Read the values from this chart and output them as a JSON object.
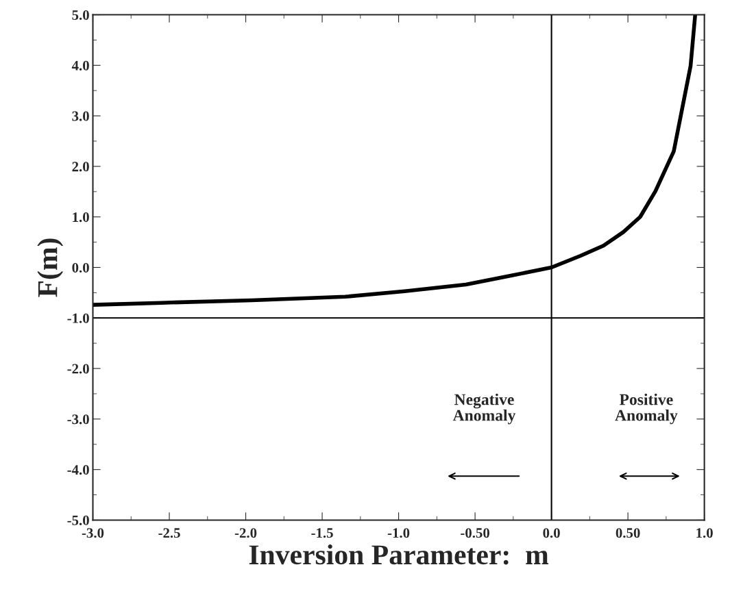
{
  "chart_data": {
    "type": "line",
    "xlabel": "Inversion Parameter:  m",
    "ylabel": "F(m)",
    "x": [
      -3.0,
      -2.55,
      -1.96,
      -1.35,
      -0.96,
      -0.56,
      -0.26,
      0.0,
      0.19,
      0.34,
      0.47,
      0.58,
      0.68,
      0.8,
      0.91,
      0.94
    ],
    "series": [
      {
        "color": "#000000",
        "values": [
          -0.74,
          -0.7,
          -0.65,
          -0.58,
          -0.47,
          -0.34,
          -0.16,
          0.0,
          0.23,
          0.43,
          0.7,
          1.0,
          1.51,
          2.3,
          3.99,
          5.0
        ]
      }
    ],
    "xlim": [
      -3.0,
      1.0
    ],
    "xticks": [
      {
        "value": -3.0,
        "label": "-3.0"
      },
      {
        "value": -2.5,
        "label": "-2.5"
      },
      {
        "value": -2.0,
        "label": "-2.0"
      },
      {
        "value": -1.5,
        "label": "-1.5"
      },
      {
        "value": -1.0,
        "label": "-1.0"
      },
      {
        "value": -0.5,
        "label": "-0.50"
      },
      {
        "value": 0.0,
        "label": "0.0"
      },
      {
        "value": 0.5,
        "label": "0.50"
      },
      {
        "value": 1.0,
        "label": "1.0"
      }
    ],
    "ylim": [
      -5.0,
      5.0
    ],
    "yticks": [
      {
        "value": -5.0,
        "label": "-5.0"
      },
      {
        "value": -4.0,
        "label": "-4.0"
      },
      {
        "value": -3.0,
        "label": "-3.0"
      },
      {
        "value": -2.0,
        "label": "-2.0"
      },
      {
        "value": -1.0,
        "label": "-1.0"
      },
      {
        "value": 0.0,
        "label": "0.0"
      },
      {
        "value": 1.0,
        "label": "1.0"
      },
      {
        "value": 2.0,
        "label": "2.0"
      },
      {
        "value": 3.0,
        "label": "3.0"
      },
      {
        "value": 4.0,
        "label": "4.0"
      },
      {
        "value": 5.0,
        "label": "5.0"
      }
    ],
    "ref_lines": [
      {
        "axis": "y",
        "value": -1.0,
        "color": "#000000"
      },
      {
        "axis": "x",
        "value": 0.0,
        "color": "#000000"
      }
    ],
    "annotations": [
      "Negative\nAnomaly",
      "Positive\nAnomaly"
    ],
    "grid": false,
    "legend": false,
    "marker": "none",
    "line_style": "solid"
  }
}
